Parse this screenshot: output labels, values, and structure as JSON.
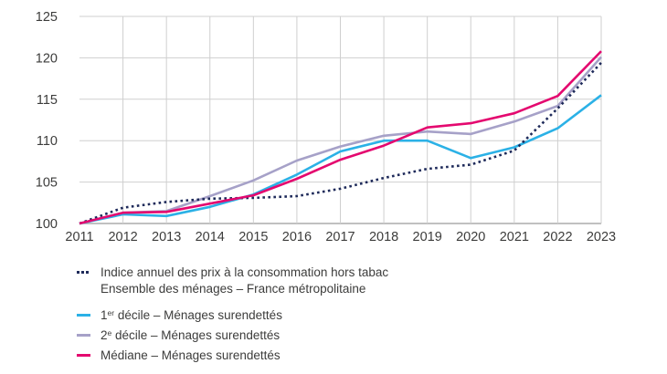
{
  "chart_data": {
    "type": "line",
    "title": "",
    "xlabel": "",
    "ylabel": "",
    "x": [
      2011,
      2012,
      2013,
      2014,
      2015,
      2016,
      2017,
      2018,
      2019,
      2020,
      2021,
      2022,
      2023
    ],
    "ylim": [
      100,
      125
    ],
    "ytick_step": 5,
    "grid": true,
    "legend_position": "bottom-left",
    "series": [
      {
        "key": "decile2",
        "name": "2e décile – Ménages surendettés",
        "color": "#a6a1c8",
        "style": "solid",
        "values": [
          100,
          101.3,
          101.5,
          103.3,
          105.2,
          107.6,
          109.3,
          110.6,
          111.1,
          110.8,
          112.3,
          114.2,
          120.1
        ]
      },
      {
        "key": "decile1",
        "name": "1er décile – Ménages surendettés",
        "color": "#2bb1e6",
        "style": "solid",
        "values": [
          100,
          101.1,
          100.9,
          102.0,
          103.5,
          105.9,
          108.7,
          110.0,
          110.0,
          107.9,
          109.2,
          111.5,
          115.5
        ]
      },
      {
        "key": "cpi",
        "name": "Indice annuel des prix à la consommation hors tabac – Ensemble des ménages – France métropolitaine",
        "color": "#1e2a5a",
        "style": "dotted",
        "values": [
          100,
          101.9,
          102.6,
          103.0,
          103.1,
          103.3,
          104.2,
          105.5,
          106.6,
          107.1,
          108.8,
          113.9,
          119.4
        ]
      },
      {
        "key": "mediane",
        "name": "Médiane – Ménages surendettés",
        "color": "#e4086f",
        "style": "solid",
        "values": [
          100,
          101.3,
          101.4,
          102.4,
          103.4,
          105.4,
          107.7,
          109.4,
          111.6,
          112.1,
          113.3,
          115.4,
          120.8
        ]
      }
    ]
  },
  "axes": {
    "y_ticks": [
      "100",
      "105",
      "110",
      "115",
      "120",
      "125"
    ],
    "x_ticks": [
      "2011",
      "2012",
      "2013",
      "2014",
      "2015",
      "2016",
      "2017",
      "2018",
      "2019",
      "2020",
      "2021",
      "2022",
      "2023"
    ]
  },
  "legend": {
    "items": [
      {
        "key": "cpi",
        "swatch": "dots",
        "line1": "Indice annuel des prix à la consommation hors tabac",
        "line2": "Ensemble des ménages – France métropolitaine"
      },
      {
        "key": "decile1",
        "swatch": "line",
        "prefix": "1",
        "sup": "er",
        "label": " décile – Ménages surendettés"
      },
      {
        "key": "decile2",
        "swatch": "line",
        "prefix": "2",
        "sup": "e",
        "label": " décile – Ménages surendettés"
      },
      {
        "key": "mediane",
        "swatch": "line",
        "prefix": "Médiane",
        "sup": "",
        "label": " – Ménages surendettés"
      }
    ]
  },
  "colors": {
    "grid": "#cfcfcf",
    "axis": "#ababab",
    "text": "#3c3c3b",
    "background": "#ffffff"
  }
}
